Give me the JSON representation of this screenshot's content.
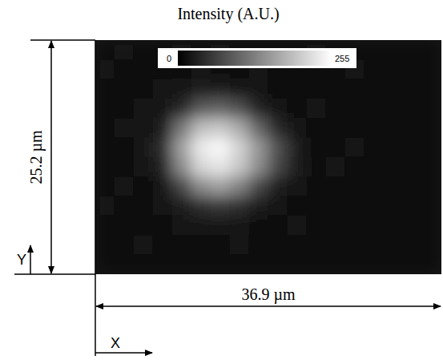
{
  "chart_data": {
    "type": "heatmap",
    "title": "Intensity (A.U.)",
    "xlabel": "X",
    "ylabel": "Y",
    "xlim": [
      0,
      36.9
    ],
    "ylim": [
      0,
      25.2
    ],
    "width_label": "36.9 µm",
    "height_label": "25.2 µm",
    "tick_labels": false,
    "colorbar": {
      "range": [
        0,
        255
      ],
      "ticks": [
        0,
        255
      ]
    },
    "cells": [
      [
        16,
        18,
        14,
        17,
        19,
        15,
        18,
        16,
        14,
        17,
        15,
        18,
        16,
        14,
        17,
        15,
        13,
        16
      ],
      [
        18,
        15,
        17,
        14,
        16,
        19,
        17,
        15,
        18,
        16,
        14,
        17,
        15,
        18,
        14,
        16,
        15,
        14
      ],
      [
        15,
        17,
        16,
        18,
        22,
        26,
        28,
        24,
        19,
        16,
        17,
        15,
        16,
        14,
        17,
        15,
        14,
        16
      ],
      [
        17,
        14,
        18,
        24,
        40,
        90,
        100,
        80,
        35,
        20,
        16,
        18,
        15,
        17,
        14,
        16,
        15,
        13
      ],
      [
        16,
        18,
        20,
        30,
        120,
        190,
        200,
        170,
        100,
        40,
        20,
        15,
        17,
        16,
        15,
        14,
        16,
        15
      ],
      [
        14,
        17,
        22,
        45,
        160,
        235,
        250,
        210,
        150,
        80,
        30,
        17,
        15,
        18,
        16,
        15,
        14,
        16
      ],
      [
        17,
        15,
        21,
        35,
        140,
        215,
        230,
        200,
        140,
        70,
        28,
        16,
        18,
        15,
        17,
        14,
        16,
        15
      ],
      [
        15,
        18,
        17,
        22,
        70,
        140,
        160,
        130,
        70,
        30,
        19,
        17,
        14,
        16,
        15,
        17,
        15,
        14
      ],
      [
        18,
        16,
        15,
        19,
        28,
        45,
        55,
        45,
        28,
        20,
        16,
        15,
        17,
        14,
        16,
        15,
        14,
        16
      ],
      [
        14,
        17,
        16,
        15,
        18,
        20,
        22,
        19,
        17,
        15,
        18,
        16,
        15,
        17,
        14,
        16,
        15,
        13
      ],
      [
        16,
        15,
        18,
        17,
        14,
        16,
        15,
        18,
        16,
        14,
        17,
        15,
        16,
        14,
        16,
        15,
        14,
        15
      ],
      [
        15,
        16,
        14,
        16,
        17,
        15,
        16,
        14,
        15,
        16,
        14,
        15,
        14,
        15,
        13,
        14,
        15,
        14
      ]
    ]
  }
}
